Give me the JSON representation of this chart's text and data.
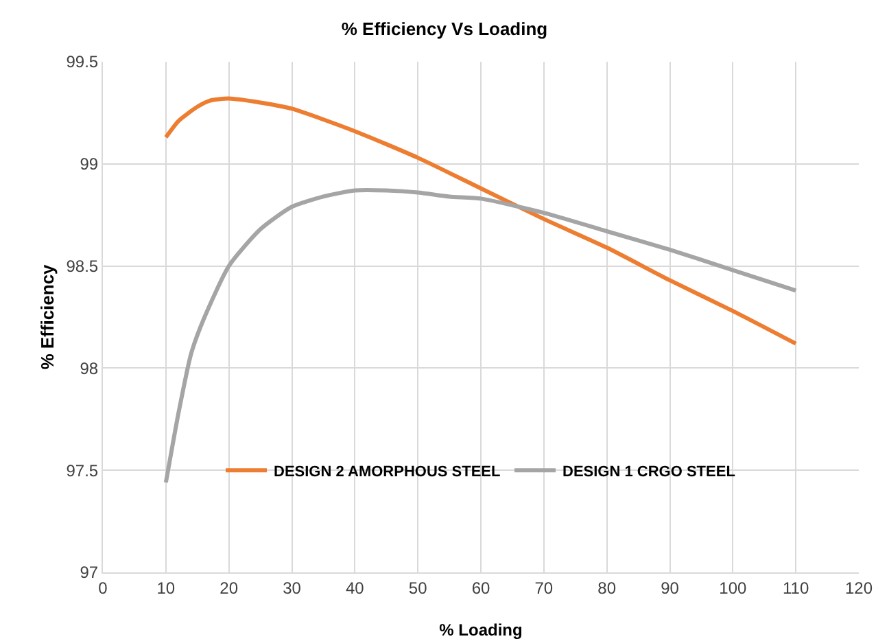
{
  "chart_data": {
    "type": "line",
    "title": "% Efficiency Vs Loading",
    "xlabel": "% Loading",
    "ylabel": "% Efficiency",
    "xlim": [
      0,
      120
    ],
    "xticks": [
      0,
      10,
      20,
      30,
      40,
      50,
      60,
      70,
      80,
      90,
      100,
      110,
      120
    ],
    "ylim": [
      97,
      99.5
    ],
    "yticks": [
      97,
      97.5,
      98,
      98.5,
      99,
      99.5
    ],
    "grid": true,
    "legend": "bottom",
    "marker": "none",
    "line_style": "solid",
    "series": [
      {
        "name": "DESIGN 2 AMORPHOUS STEEL",
        "color": "#ed7d31",
        "x": [
          10,
          12,
          15,
          17,
          20,
          25,
          30,
          40,
          50,
          60,
          70,
          80,
          90,
          100,
          110
        ],
        "values": [
          99.13,
          99.21,
          99.28,
          99.31,
          99.32,
          99.3,
          99.27,
          99.16,
          99.03,
          98.88,
          98.73,
          98.59,
          98.43,
          98.28,
          98.12
        ]
      },
      {
        "name": "DESIGN 1 CRGO STEEL",
        "color": "#a5a5a5",
        "x": [
          10,
          12,
          14,
          16,
          20,
          25,
          30,
          35,
          40,
          45,
          50,
          55,
          60,
          70,
          80,
          90,
          100,
          110
        ],
        "values": [
          97.44,
          97.78,
          98.07,
          98.24,
          98.5,
          98.68,
          98.79,
          98.84,
          98.87,
          98.87,
          98.86,
          98.84,
          98.83,
          98.76,
          98.67,
          98.58,
          98.48,
          98.38
        ]
      }
    ]
  }
}
